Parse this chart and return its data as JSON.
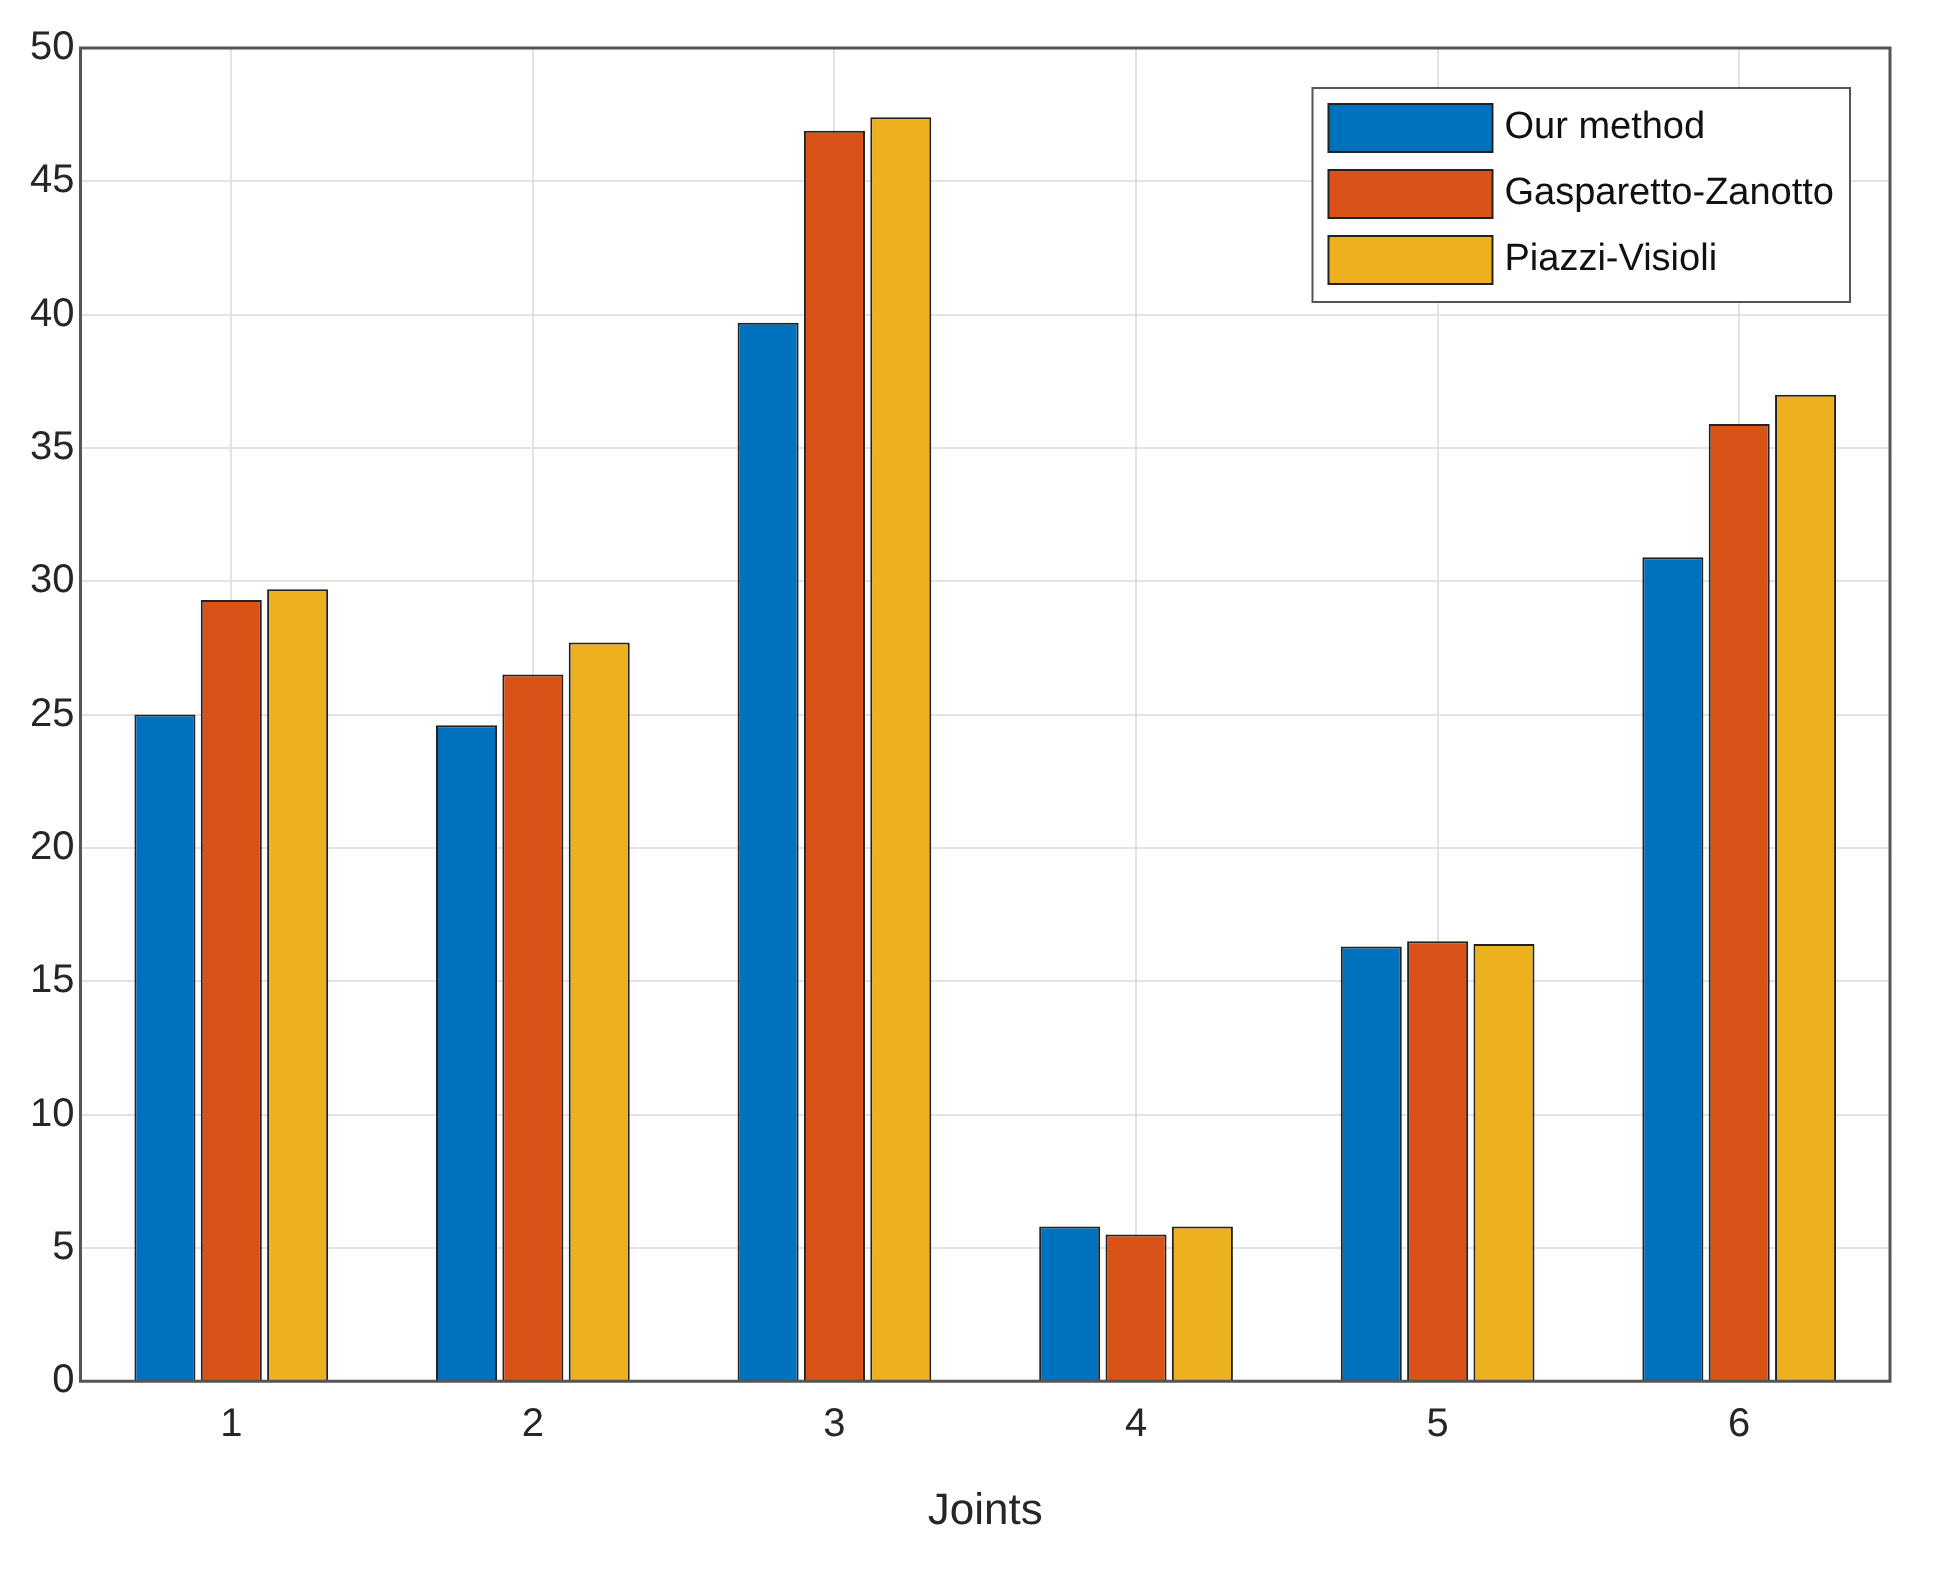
{
  "chart_data": {
    "type": "bar",
    "xlabel": "Joints",
    "categories": [
      "1",
      "2",
      "3",
      "4",
      "5",
      "6"
    ],
    "series": [
      {
        "name": "Our method",
        "color": "#0072bd",
        "values": [
          25.0,
          24.6,
          39.7,
          5.8,
          16.3,
          30.9
        ]
      },
      {
        "name": "Gasparetto-Zanotto",
        "color": "#d95319",
        "values": [
          29.3,
          26.5,
          46.9,
          5.5,
          16.5,
          35.9
        ]
      },
      {
        "name": "Piazzi-Visioli",
        "color": "#edb120",
        "values": [
          29.7,
          27.7,
          47.4,
          5.8,
          16.4,
          37.0
        ]
      }
    ],
    "ylim": [
      0,
      50
    ],
    "yticks": [
      0,
      5,
      10,
      15,
      20,
      25,
      30,
      35,
      40,
      45,
      50
    ],
    "grid": true,
    "legend": "top right"
  }
}
